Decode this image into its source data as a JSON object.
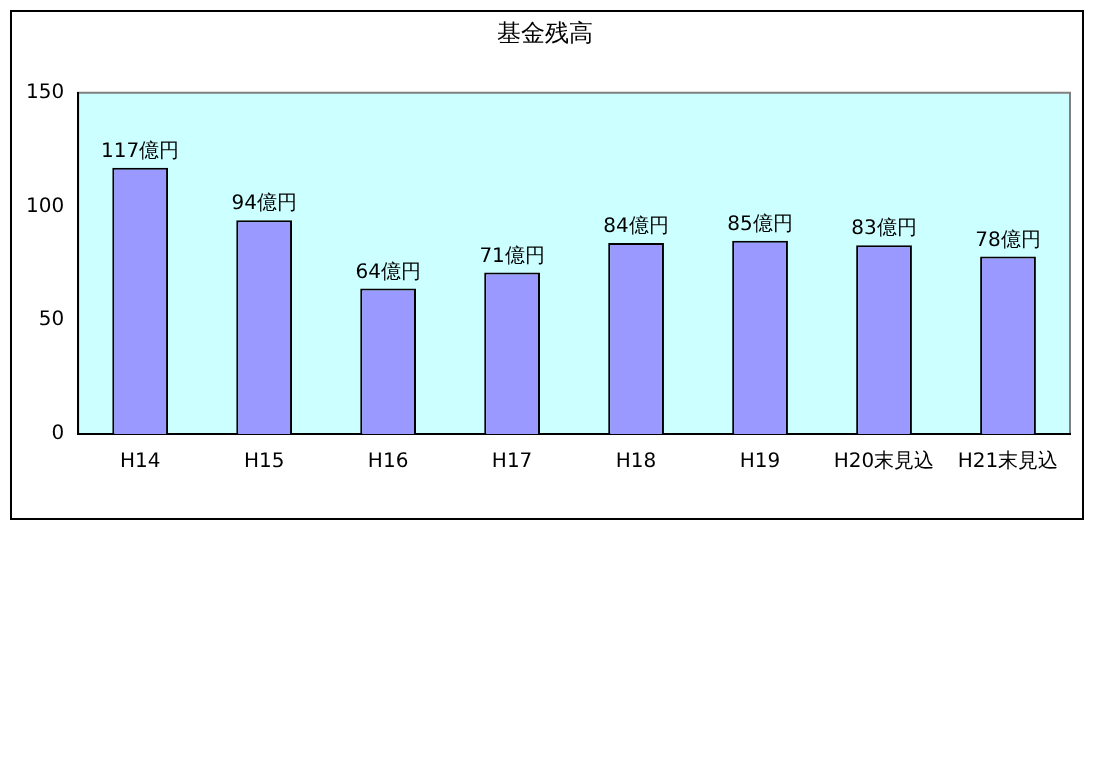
{
  "chart_data": {
    "type": "bar",
    "title": "基金残高",
    "categories": [
      "H14",
      "H15",
      "H16",
      "H17",
      "H18",
      "H19",
      "H20末見込",
      "H21末見込"
    ],
    "values": [
      117,
      94,
      64,
      71,
      84,
      85,
      83,
      78
    ],
    "value_labels": [
      "117億円",
      "94億円",
      "64億円",
      "71億円",
      "84億円",
      "85億円",
      "83億円",
      "78億円"
    ],
    "color": "#9999ff",
    "ylim": [
      0,
      150
    ],
    "yticks": [
      0,
      50,
      100,
      150
    ],
    "grid": false,
    "legend": false
  }
}
